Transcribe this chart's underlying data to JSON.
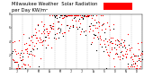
{
  "title_line1": "Milwaukee Weather  Solar Radiation",
  "title_line2": "per Day KW/m²",
  "title_fontsize": 3.8,
  "background_color": "#ffffff",
  "xlim": [
    0,
    365
  ],
  "ylim": [
    0,
    8
  ],
  "ytick_labels": [
    "0",
    "2",
    "4",
    "6",
    "8"
  ],
  "ytick_values": [
    0,
    2,
    4,
    6,
    8
  ],
  "dot_color_red": "#ff0000",
  "dot_color_black": "#000000",
  "legend_box_color": "#ff0000",
  "vgrid_color": "#bbbbbb",
  "vgrid_style": "--",
  "marker_size": 0.8,
  "num_points": 365,
  "random_seed": 42,
  "month_ticks": [
    0,
    31,
    59,
    90,
    120,
    151,
    181,
    212,
    243,
    273,
    304,
    334,
    365
  ],
  "month_labels": [
    "J",
    "F",
    "M",
    "A",
    "M",
    "J",
    "J",
    "A",
    "S",
    "O",
    "N",
    "D",
    ""
  ]
}
